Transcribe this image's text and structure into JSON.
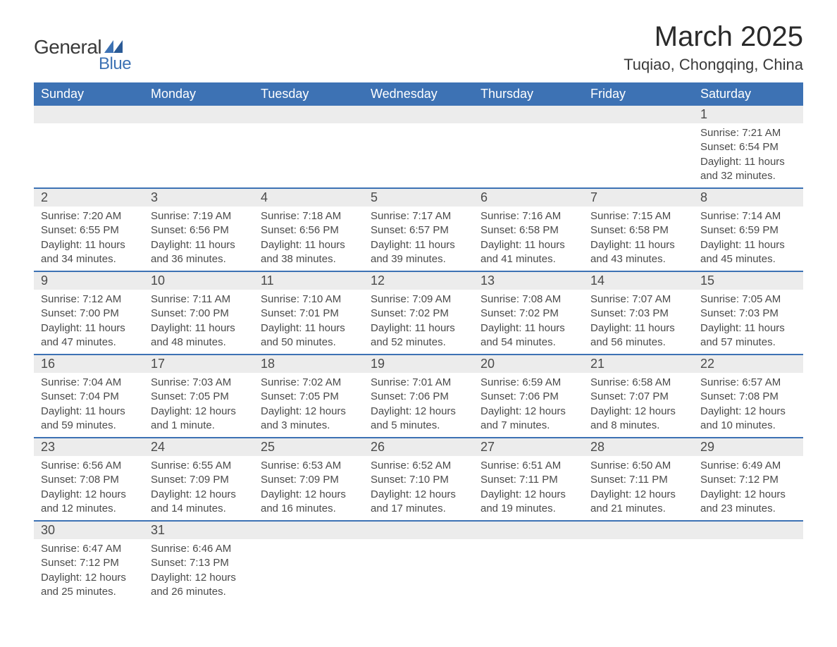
{
  "logo": {
    "text1": "General",
    "text2": "Blue"
  },
  "colors": {
    "header_bg": "#3d72b4",
    "header_text": "#ffffff",
    "daynum_bg": "#ececec",
    "body_text": "#4a4a4a",
    "border": "#3d72b4",
    "logo_blue": "#3d72b4",
    "logo_dark": "#3a3a3a"
  },
  "title": {
    "month_year": "March 2025",
    "location": "Tuqiao, Chongqing, China"
  },
  "weekdays": [
    "Sunday",
    "Monday",
    "Tuesday",
    "Wednesday",
    "Thursday",
    "Friday",
    "Saturday"
  ],
  "weeks": [
    [
      null,
      null,
      null,
      null,
      null,
      null,
      {
        "d": "1",
        "sr": "7:21 AM",
        "ss": "6:54 PM",
        "dl": "11 hours and 32 minutes."
      }
    ],
    [
      {
        "d": "2",
        "sr": "7:20 AM",
        "ss": "6:55 PM",
        "dl": "11 hours and 34 minutes."
      },
      {
        "d": "3",
        "sr": "7:19 AM",
        "ss": "6:56 PM",
        "dl": "11 hours and 36 minutes."
      },
      {
        "d": "4",
        "sr": "7:18 AM",
        "ss": "6:56 PM",
        "dl": "11 hours and 38 minutes."
      },
      {
        "d": "5",
        "sr": "7:17 AM",
        "ss": "6:57 PM",
        "dl": "11 hours and 39 minutes."
      },
      {
        "d": "6",
        "sr": "7:16 AM",
        "ss": "6:58 PM",
        "dl": "11 hours and 41 minutes."
      },
      {
        "d": "7",
        "sr": "7:15 AM",
        "ss": "6:58 PM",
        "dl": "11 hours and 43 minutes."
      },
      {
        "d": "8",
        "sr": "7:14 AM",
        "ss": "6:59 PM",
        "dl": "11 hours and 45 minutes."
      }
    ],
    [
      {
        "d": "9",
        "sr": "7:12 AM",
        "ss": "7:00 PM",
        "dl": "11 hours and 47 minutes."
      },
      {
        "d": "10",
        "sr": "7:11 AM",
        "ss": "7:00 PM",
        "dl": "11 hours and 48 minutes."
      },
      {
        "d": "11",
        "sr": "7:10 AM",
        "ss": "7:01 PM",
        "dl": "11 hours and 50 minutes."
      },
      {
        "d": "12",
        "sr": "7:09 AM",
        "ss": "7:02 PM",
        "dl": "11 hours and 52 minutes."
      },
      {
        "d": "13",
        "sr": "7:08 AM",
        "ss": "7:02 PM",
        "dl": "11 hours and 54 minutes."
      },
      {
        "d": "14",
        "sr": "7:07 AM",
        "ss": "7:03 PM",
        "dl": "11 hours and 56 minutes."
      },
      {
        "d": "15",
        "sr": "7:05 AM",
        "ss": "7:03 PM",
        "dl": "11 hours and 57 minutes."
      }
    ],
    [
      {
        "d": "16",
        "sr": "7:04 AM",
        "ss": "7:04 PM",
        "dl": "11 hours and 59 minutes."
      },
      {
        "d": "17",
        "sr": "7:03 AM",
        "ss": "7:05 PM",
        "dl": "12 hours and 1 minute."
      },
      {
        "d": "18",
        "sr": "7:02 AM",
        "ss": "7:05 PM",
        "dl": "12 hours and 3 minutes."
      },
      {
        "d": "19",
        "sr": "7:01 AM",
        "ss": "7:06 PM",
        "dl": "12 hours and 5 minutes."
      },
      {
        "d": "20",
        "sr": "6:59 AM",
        "ss": "7:06 PM",
        "dl": "12 hours and 7 minutes."
      },
      {
        "d": "21",
        "sr": "6:58 AM",
        "ss": "7:07 PM",
        "dl": "12 hours and 8 minutes."
      },
      {
        "d": "22",
        "sr": "6:57 AM",
        "ss": "7:08 PM",
        "dl": "12 hours and 10 minutes."
      }
    ],
    [
      {
        "d": "23",
        "sr": "6:56 AM",
        "ss": "7:08 PM",
        "dl": "12 hours and 12 minutes."
      },
      {
        "d": "24",
        "sr": "6:55 AM",
        "ss": "7:09 PM",
        "dl": "12 hours and 14 minutes."
      },
      {
        "d": "25",
        "sr": "6:53 AM",
        "ss": "7:09 PM",
        "dl": "12 hours and 16 minutes."
      },
      {
        "d": "26",
        "sr": "6:52 AM",
        "ss": "7:10 PM",
        "dl": "12 hours and 17 minutes."
      },
      {
        "d": "27",
        "sr": "6:51 AM",
        "ss": "7:11 PM",
        "dl": "12 hours and 19 minutes."
      },
      {
        "d": "28",
        "sr": "6:50 AM",
        "ss": "7:11 PM",
        "dl": "12 hours and 21 minutes."
      },
      {
        "d": "29",
        "sr": "6:49 AM",
        "ss": "7:12 PM",
        "dl": "12 hours and 23 minutes."
      }
    ],
    [
      {
        "d": "30",
        "sr": "6:47 AM",
        "ss": "7:12 PM",
        "dl": "12 hours and 25 minutes."
      },
      {
        "d": "31",
        "sr": "6:46 AM",
        "ss": "7:13 PM",
        "dl": "12 hours and 26 minutes."
      },
      null,
      null,
      null,
      null,
      null
    ]
  ],
  "labels": {
    "sunrise": "Sunrise: ",
    "sunset": "Sunset: ",
    "daylight": "Daylight: "
  }
}
